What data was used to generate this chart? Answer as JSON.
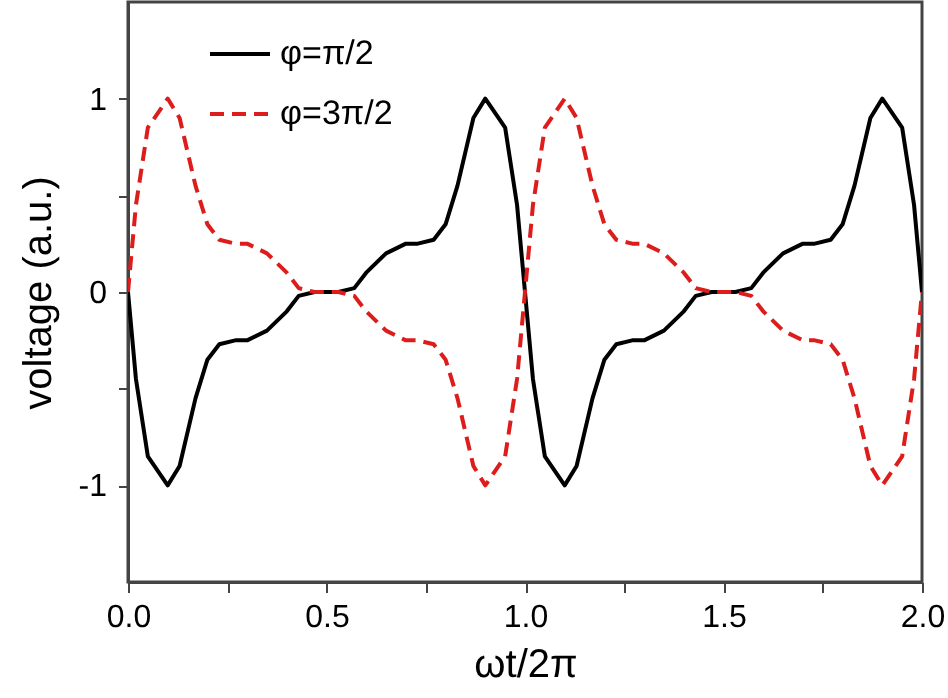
{
  "chart_data": {
    "type": "line",
    "xlabel": "ωt/2π",
    "ylabel": "voltage (a.u.)",
    "x": [
      0,
      0.02,
      0.05,
      0.1,
      0.13,
      0.17,
      0.2,
      0.23,
      0.27,
      0.3,
      0.35,
      0.4,
      0.43,
      0.47,
      0.5,
      0.53,
      0.57,
      0.6,
      0.65,
      0.7,
      0.73,
      0.77,
      0.8,
      0.83,
      0.87,
      0.9,
      0.95,
      0.98,
      1,
      1.02,
      1.05,
      1.1,
      1.13,
      1.17,
      1.2,
      1.23,
      1.27,
      1.3,
      1.35,
      1.4,
      1.43,
      1.47,
      1.5,
      1.53,
      1.57,
      1.6,
      1.65,
      1.7,
      1.73,
      1.77,
      1.8,
      1.83,
      1.87,
      1.9,
      1.95,
      1.98,
      2
    ],
    "series": [
      {
        "name": "φ=π/2",
        "color": "#000000",
        "line_style": "solid",
        "values": [
          0,
          -0.45,
          -0.85,
          -1,
          -0.9,
          -0.55,
          -0.35,
          -0.27,
          -0.25,
          -0.25,
          -0.2,
          -0.1,
          -0.02,
          0,
          0,
          0,
          0.02,
          0.1,
          0.2,
          0.25,
          0.25,
          0.27,
          0.35,
          0.55,
          0.9,
          1,
          0.85,
          0.45,
          0,
          -0.45,
          -0.85,
          -1,
          -0.9,
          -0.55,
          -0.35,
          -0.27,
          -0.25,
          -0.25,
          -0.2,
          -0.1,
          -0.02,
          0,
          0,
          0,
          0.02,
          0.1,
          0.2,
          0.25,
          0.25,
          0.27,
          0.35,
          0.55,
          0.9,
          1,
          0.85,
          0.45,
          0
        ]
      },
      {
        "name": "φ=3π/2",
        "color": "#dd1c1c",
        "line_style": "dashed",
        "values": [
          0,
          0.45,
          0.85,
          1,
          0.9,
          0.55,
          0.35,
          0.27,
          0.25,
          0.25,
          0.2,
          0.1,
          0.02,
          0,
          0,
          0,
          -0.02,
          -0.1,
          -0.2,
          -0.25,
          -0.25,
          -0.27,
          -0.35,
          -0.55,
          -0.9,
          -1,
          -0.85,
          -0.45,
          0,
          0.45,
          0.85,
          1,
          0.9,
          0.55,
          0.35,
          0.27,
          0.25,
          0.25,
          0.2,
          0.1,
          0.02,
          0,
          0,
          0,
          -0.02,
          -0.1,
          -0.2,
          -0.25,
          -0.25,
          -0.27,
          -0.35,
          -0.55,
          -0.9,
          -1,
          -0.85,
          -0.45,
          0
        ]
      }
    ],
    "xlim": [
      0,
      2
    ],
    "xticks": [
      {
        "value": 0,
        "label": "0.0"
      },
      {
        "value": 0.25,
        "label": null
      },
      0.5,
      {
        "value": 0.75,
        "label": null
      },
      {
        "value": 1,
        "label": "1.0"
      },
      {
        "value": 1.25,
        "label": null
      },
      1.5,
      {
        "value": 1.75,
        "label": null
      },
      {
        "value": 2,
        "label": "2.0"
      }
    ],
    "ylim": [
      -1.5,
      1.5
    ],
    "yticks": [
      -1,
      {
        "value": -0.5,
        "label": null
      },
      0,
      {
        "value": 0.5,
        "label": null
      },
      1
    ],
    "grid": false,
    "legend": "top left",
    "marker": "none"
  }
}
